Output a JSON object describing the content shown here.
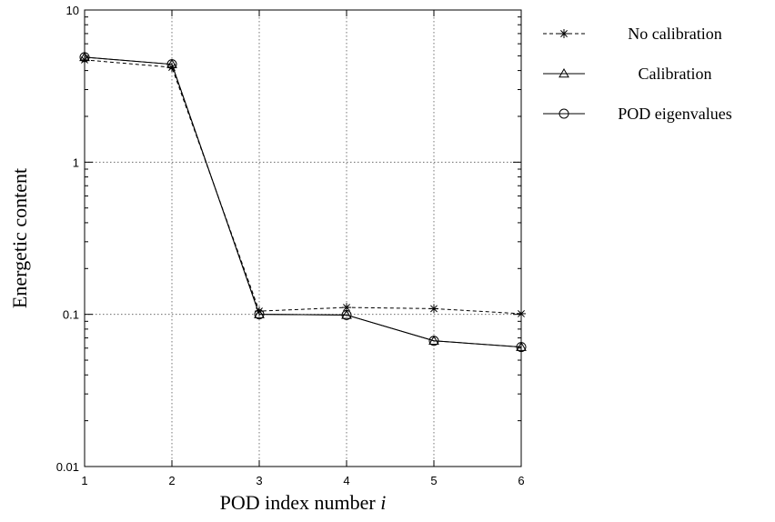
{
  "chart_data": {
    "type": "line",
    "xlabel_text": "POD index number ",
    "xlabel_var": "i",
    "ylabel": "Energetic content",
    "y_scale": "log",
    "ylim": [
      0.01,
      10
    ],
    "xlim": [
      1,
      6
    ],
    "x_ticks": [
      "1",
      "2",
      "3",
      "4",
      "5",
      "6"
    ],
    "y_ticks": [
      {
        "value": 0.01,
        "label": "0.01"
      },
      {
        "value": 0.1,
        "label": "0.1"
      },
      {
        "value": 1,
        "label": "1"
      },
      {
        "value": 10,
        "label": "10"
      }
    ],
    "grid": true,
    "legend_position": "outside-right-top",
    "x": [
      1,
      2,
      3,
      4,
      5,
      6
    ],
    "series": [
      {
        "name": "No calibration",
        "marker": "asterisk",
        "line": "dashed",
        "values": [
          4.7,
          4.2,
          0.105,
          0.111,
          0.109,
          0.101
        ]
      },
      {
        "name": "Calibration",
        "marker": "triangle",
        "line": "solid",
        "values": [
          4.9,
          4.4,
          0.1,
          0.099,
          0.067,
          0.061
        ]
      },
      {
        "name": "POD eigenvalues",
        "marker": "circle",
        "line": "solid",
        "values": [
          4.9,
          4.4,
          0.1,
          0.099,
          0.067,
          0.061
        ]
      }
    ]
  }
}
